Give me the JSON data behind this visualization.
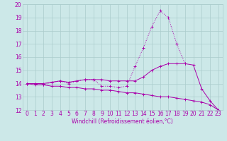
{
  "x": [
    0,
    1,
    2,
    3,
    4,
    5,
    6,
    7,
    8,
    9,
    10,
    11,
    12,
    13,
    14,
    15,
    16,
    17,
    18,
    19,
    20,
    21,
    22,
    23
  ],
  "line1": [
    14.0,
    14.0,
    13.9,
    14.1,
    14.2,
    14.0,
    14.2,
    14.3,
    14.3,
    13.8,
    13.8,
    13.7,
    13.8,
    15.3,
    16.7,
    18.3,
    19.5,
    19.0,
    17.0,
    15.5,
    null,
    null,
    null,
    null
  ],
  "line2": [
    14.0,
    14.0,
    14.0,
    14.1,
    14.2,
    14.1,
    14.2,
    14.3,
    14.3,
    14.3,
    14.2,
    14.2,
    14.2,
    14.2,
    14.5,
    15.0,
    15.3,
    15.5,
    15.5,
    15.5,
    15.4,
    13.6,
    12.7,
    12.0
  ],
  "line3": [
    14.0,
    13.9,
    13.9,
    13.8,
    13.8,
    13.7,
    13.7,
    13.6,
    13.6,
    13.5,
    13.5,
    13.4,
    13.3,
    13.3,
    13.2,
    13.1,
    13.0,
    13.0,
    12.9,
    12.8,
    12.7,
    12.6,
    12.4,
    12.0
  ],
  "color": "#aa00aa",
  "bg_color": "#cce8e8",
  "grid_color": "#aacccc",
  "xlabel": "Windchill (Refroidissement éolien,°C)",
  "xlim": [
    -0.5,
    23.5
  ],
  "ylim": [
    12,
    20
  ],
  "xticks": [
    0,
    1,
    2,
    3,
    4,
    5,
    6,
    7,
    8,
    9,
    10,
    11,
    12,
    13,
    14,
    15,
    16,
    17,
    18,
    19,
    20,
    21,
    22,
    23
  ],
  "yticks": [
    12,
    13,
    14,
    15,
    16,
    17,
    18,
    19,
    20
  ],
  "tick_fontsize": 5.5,
  "xlabel_fontsize": 5.5
}
